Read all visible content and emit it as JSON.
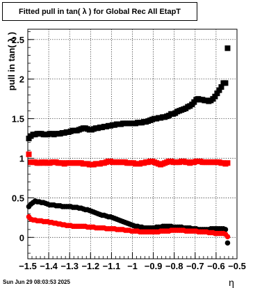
{
  "title": "Fitted pull in tan( λ  ) for Global Rec All EtapT",
  "footer_date": "Sun Jun 29 08:03:53 2025",
  "chart_data": {
    "type": "scatter",
    "title": "Fitted pull in tan( λ  ) for Global Rec All EtapT",
    "xlabel": "η",
    "ylabel": "pull in tan( λ  )",
    "xlim": [
      -1.5,
      -0.5
    ],
    "ylim": [
      -0.27,
      2.63
    ],
    "x_ticks": [
      -1.5,
      -1.4,
      -1.3,
      -1.2,
      -1.1,
      -1.0,
      -0.9,
      -0.8,
      -0.7,
      -0.6,
      -0.5
    ],
    "x_tick_labels": [
      "−1.5",
      "−1.4",
      "−1.3",
      "−1.2",
      "−1.1",
      "−1",
      "−0.9",
      "−0.8",
      "−0.7",
      "−0.6",
      "−0.5"
    ],
    "y_ticks": [
      0,
      0.5,
      1,
      1.5,
      2,
      2.5
    ],
    "y_tick_labels": [
      "0",
      "0.5",
      "1",
      "1.5",
      "2",
      "2.5"
    ],
    "grid": true,
    "x": [
      -1.495,
      -1.485,
      -1.475,
      -1.465,
      -1.455,
      -1.445,
      -1.435,
      -1.425,
      -1.415,
      -1.405,
      -1.395,
      -1.385,
      -1.375,
      -1.365,
      -1.355,
      -1.345,
      -1.335,
      -1.325,
      -1.315,
      -1.305,
      -1.295,
      -1.285,
      -1.275,
      -1.265,
      -1.255,
      -1.245,
      -1.235,
      -1.225,
      -1.215,
      -1.205,
      -1.195,
      -1.185,
      -1.175,
      -1.165,
      -1.155,
      -1.145,
      -1.135,
      -1.125,
      -1.115,
      -1.105,
      -1.095,
      -1.085,
      -1.075,
      -1.065,
      -1.055,
      -1.045,
      -1.035,
      -1.025,
      -1.015,
      -1.005,
      -0.995,
      -0.985,
      -0.975,
      -0.965,
      -0.955,
      -0.945,
      -0.935,
      -0.925,
      -0.915,
      -0.905,
      -0.895,
      -0.885,
      -0.875,
      -0.865,
      -0.855,
      -0.845,
      -0.835,
      -0.825,
      -0.815,
      -0.805,
      -0.795,
      -0.785,
      -0.775,
      -0.765,
      -0.755,
      -0.745,
      -0.735,
      -0.725,
      -0.715,
      -0.705,
      -0.695,
      -0.685,
      -0.675,
      -0.665,
      -0.655,
      -0.645,
      -0.635,
      -0.625,
      -0.615,
      -0.605,
      -0.595,
      -0.585,
      -0.575,
      -0.565,
      -0.555,
      -0.545,
      -0.535,
      -0.525,
      -0.515,
      -0.505
    ],
    "series": [
      {
        "marker": "square",
        "color": "#000000",
        "values": [
          1.25,
          1.28,
          1.3,
          1.3,
          1.31,
          1.31,
          1.31,
          1.3,
          1.3,
          1.3,
          1.31,
          1.31,
          1.3,
          1.31,
          1.31,
          1.31,
          1.32,
          1.32,
          1.33,
          1.33,
          1.34,
          1.35,
          1.35,
          1.35,
          1.36,
          1.37,
          1.38,
          1.38,
          1.37,
          1.36,
          1.36,
          1.37,
          1.38,
          1.38,
          1.39,
          1.39,
          1.4,
          1.4,
          1.41,
          1.41,
          1.42,
          1.42,
          1.43,
          1.43,
          1.43,
          1.44,
          1.44,
          1.44,
          1.44,
          1.44,
          1.44,
          1.44,
          1.45,
          1.45,
          1.45,
          1.46,
          1.46,
          1.47,
          1.48,
          1.49,
          1.5,
          1.5,
          1.51,
          1.51,
          1.52,
          1.52,
          1.53,
          1.54,
          1.56,
          1.56,
          1.57,
          1.59,
          1.6,
          1.61,
          1.62,
          1.63,
          1.65,
          1.66,
          1.68,
          1.71,
          1.74,
          1.75,
          1.74,
          1.74,
          1.73,
          1.73,
          1.72,
          1.73,
          1.75,
          1.78,
          1.82,
          1.86,
          1.9,
          1.95,
          1.95,
          2.39
        ]
      },
      {
        "marker": "square",
        "color": "#ff0000",
        "values": [
          1.05,
          0.95,
          0.95,
          0.95,
          0.94,
          0.94,
          0.95,
          0.94,
          0.95,
          0.94,
          0.94,
          0.95,
          0.95,
          0.95,
          0.94,
          0.94,
          0.94,
          0.93,
          0.94,
          0.94,
          0.94,
          0.94,
          0.94,
          0.94,
          0.94,
          0.94,
          0.93,
          0.93,
          0.93,
          0.92,
          0.92,
          0.92,
          0.93,
          0.93,
          0.93,
          0.94,
          0.94,
          0.95,
          0.96,
          0.96,
          0.95,
          0.95,
          0.95,
          0.95,
          0.95,
          0.95,
          0.95,
          0.94,
          0.94,
          0.94,
          0.94,
          0.93,
          0.93,
          0.93,
          0.94,
          0.94,
          0.95,
          0.95,
          0.96,
          0.96,
          0.95,
          0.94,
          0.93,
          0.92,
          0.93,
          0.94,
          0.95,
          0.96,
          0.96,
          0.95,
          0.95,
          0.95,
          0.95,
          0.96,
          0.96,
          0.95,
          0.95,
          0.94,
          0.95,
          0.95,
          0.96,
          0.96,
          0.96,
          0.95,
          0.95,
          0.95,
          0.95,
          0.95,
          0.95,
          0.95,
          0.95,
          0.95,
          0.94,
          0.94,
          0.93,
          0.94
        ]
      },
      {
        "marker": "circle",
        "color": "#000000",
        "values": [
          0.39,
          0.42,
          0.44,
          0.46,
          0.45,
          0.45,
          0.44,
          0.44,
          0.43,
          0.42,
          0.41,
          0.41,
          0.41,
          0.4,
          0.4,
          0.4,
          0.39,
          0.39,
          0.39,
          0.39,
          0.39,
          0.38,
          0.38,
          0.38,
          0.37,
          0.37,
          0.36,
          0.35,
          0.35,
          0.34,
          0.33,
          0.32,
          0.31,
          0.3,
          0.29,
          0.28,
          0.28,
          0.27,
          0.26,
          0.26,
          0.25,
          0.24,
          0.23,
          0.22,
          0.21,
          0.2,
          0.19,
          0.18,
          0.17,
          0.16,
          0.15,
          0.14,
          0.14,
          0.13,
          0.13,
          0.12,
          0.12,
          0.12,
          0.12,
          0.12,
          0.12,
          0.13,
          0.13,
          0.13,
          0.14,
          0.14,
          0.14,
          0.14,
          0.14,
          0.13,
          0.13,
          0.13,
          0.13,
          0.13,
          0.12,
          0.12,
          0.12,
          0.12,
          0.11,
          0.11,
          0.11,
          0.1,
          0.1,
          0.1,
          0.1,
          0.1,
          0.1,
          0.11,
          0.11,
          0.11,
          0.11,
          0.11,
          0.11,
          0.11,
          0.1,
          -0.07
        ]
      },
      {
        "marker": "circle",
        "color": "#ff0000",
        "values": [
          0.26,
          0.23,
          0.22,
          0.22,
          0.21,
          0.21,
          0.21,
          0.2,
          0.2,
          0.2,
          0.19,
          0.19,
          0.18,
          0.18,
          0.17,
          0.17,
          0.16,
          0.16,
          0.15,
          0.15,
          0.15,
          0.14,
          0.14,
          0.14,
          0.14,
          0.14,
          0.14,
          0.14,
          0.13,
          0.13,
          0.13,
          0.13,
          0.12,
          0.12,
          0.12,
          0.12,
          0.12,
          0.11,
          0.11,
          0.11,
          0.11,
          0.11,
          0.1,
          0.1,
          0.1,
          0.1,
          0.09,
          0.09,
          0.09,
          0.08,
          0.08,
          0.08,
          0.08,
          0.07,
          0.07,
          0.07,
          0.07,
          0.07,
          0.07,
          0.07,
          0.07,
          0.07,
          0.07,
          0.08,
          0.08,
          0.08,
          0.08,
          0.08,
          0.09,
          0.09,
          0.09,
          0.09,
          0.09,
          0.09,
          0.09,
          0.08,
          0.08,
          0.08,
          0.08,
          0.08,
          0.08,
          0.07,
          0.07,
          0.07,
          0.07,
          0.07,
          0.06,
          0.06,
          0.06,
          0.05,
          0.05,
          0.05,
          0.05,
          0.05,
          0.04,
          0.01
        ]
      }
    ]
  }
}
